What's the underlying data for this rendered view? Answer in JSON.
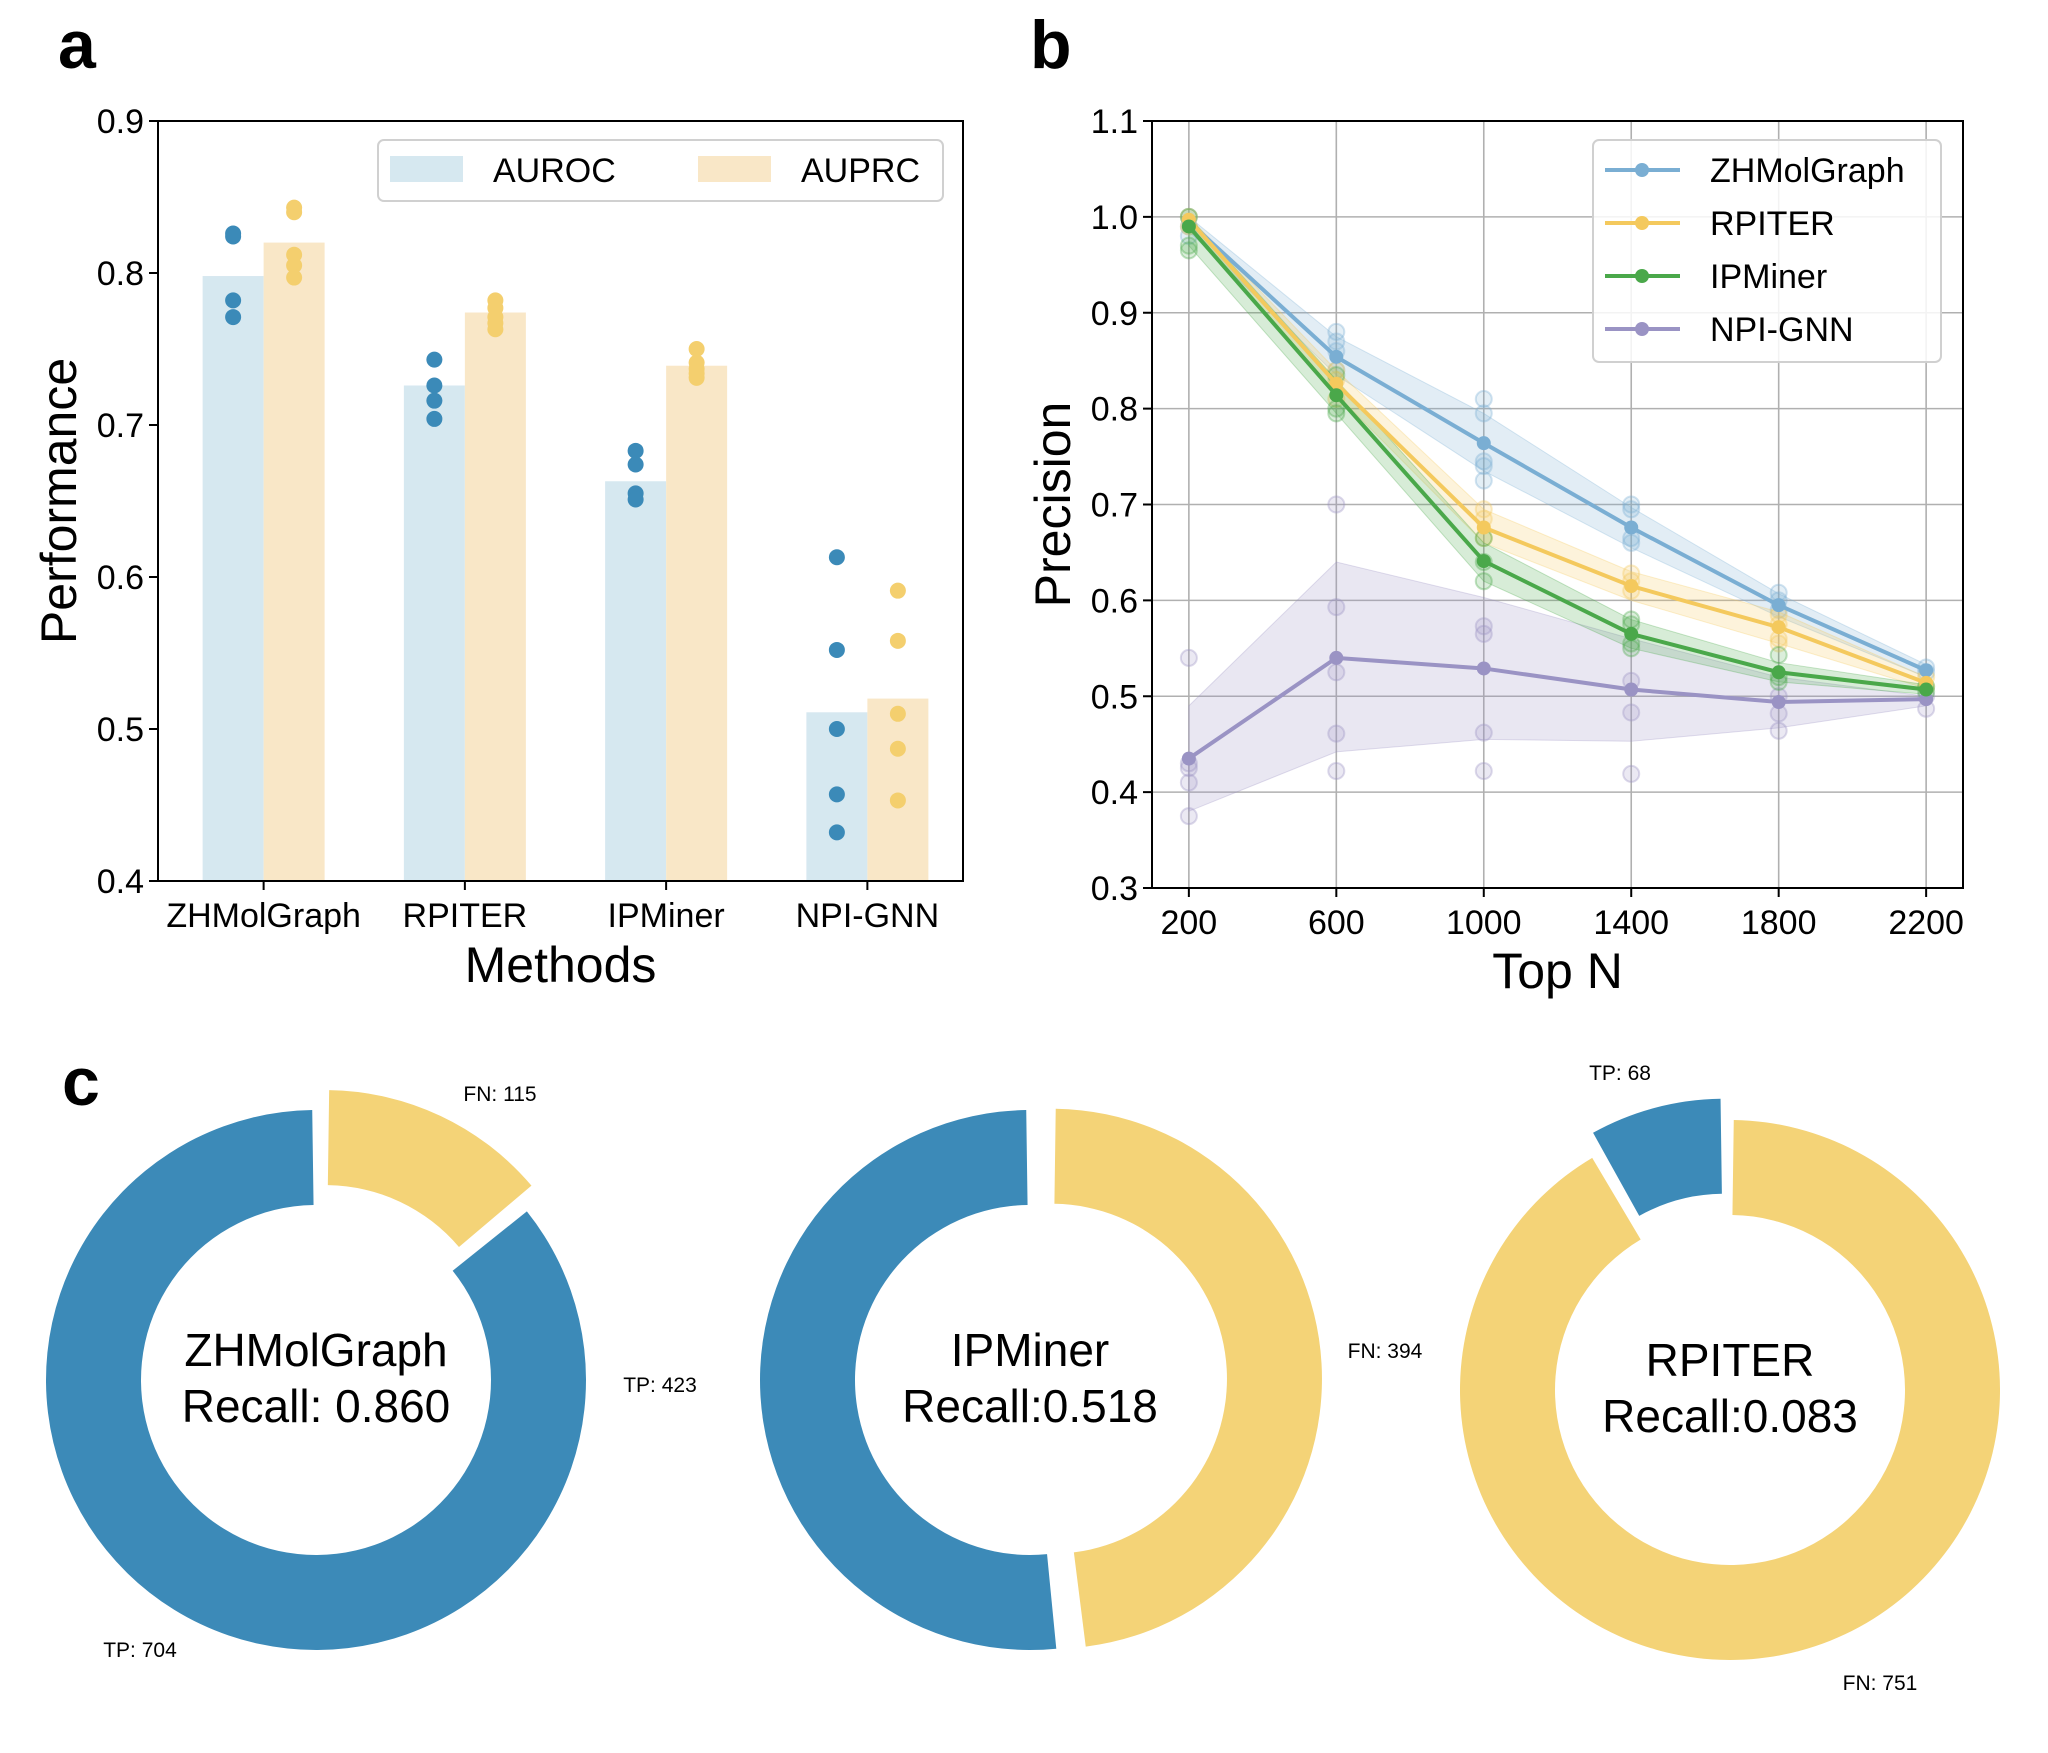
{
  "panels": {
    "a": "a",
    "b": "b",
    "c": "c"
  },
  "chart_data": [
    {
      "id": "a",
      "type": "bar",
      "title": "",
      "xlabel": "Methods",
      "ylabel": "Performance",
      "ylim": [
        0.4,
        0.9
      ],
      "yticks": [
        "0.4",
        "0.5",
        "0.6",
        "0.7",
        "0.8",
        "0.9"
      ],
      "categories": [
        "ZHMolGraph",
        "RPITER",
        "IPMiner",
        "NPI-GNN"
      ],
      "legend": {
        "placement": "top-right",
        "entries": [
          "AUROC",
          "AUPRC"
        ]
      },
      "series": [
        {
          "name": "AUROC",
          "bar_color": "#d6e8f0",
          "point_color": "#3b8ab8",
          "values": [
            0.798,
            0.726,
            0.663,
            0.511
          ],
          "points": [
            [
              0.826,
              0.824,
              0.782,
              0.771
            ],
            [
              0.743,
              0.726,
              0.716,
              0.704
            ],
            [
              0.683,
              0.674,
              0.655,
              0.651
            ],
            [
              0.613,
              0.552,
              0.5,
              0.457,
              0.432
            ]
          ]
        },
        {
          "name": "AUPRC",
          "bar_color": "#f9e7c7",
          "point_color": "#f4cf6e",
          "values": [
            0.82,
            0.774,
            0.739,
            0.52
          ],
          "points": [
            [
              0.843,
              0.84,
              0.812,
              0.805,
              0.797
            ],
            [
              0.782,
              0.777,
              0.771,
              0.767,
              0.763
            ],
            [
              0.75,
              0.741,
              0.737,
              0.734,
              0.731
            ],
            [
              0.591,
              0.558,
              0.51,
              0.487,
              0.453
            ]
          ]
        }
      ]
    },
    {
      "id": "b",
      "type": "line",
      "title": "",
      "xlabel": "Top N",
      "ylabel": "Precision",
      "x": [
        200,
        600,
        1000,
        1400,
        1800,
        2200
      ],
      "xticks": [
        "200",
        "600",
        "1000",
        "1400",
        "1800",
        "2200"
      ],
      "xlim": [
        100,
        2300
      ],
      "ylim": [
        0.3,
        1.1
      ],
      "yticks": [
        "0.3",
        "0.4",
        "0.5",
        "0.6",
        "0.7",
        "0.8",
        "0.9",
        "1.0",
        "1.1"
      ],
      "grid": true,
      "legend": {
        "placement": "top-right",
        "entries": [
          "ZHMolGraph",
          "RPITER",
          "IPMiner",
          "NPI-GNN"
        ]
      },
      "series": [
        {
          "name": "ZHMolGraph",
          "color": "#7aaed3",
          "values": [
            0.995,
            0.854,
            0.764,
            0.676,
            0.595,
            0.527
          ],
          "lower": [
            0.985,
            0.835,
            0.735,
            0.655,
            0.583,
            0.52
          ],
          "upper": [
            1.0,
            0.875,
            0.795,
            0.697,
            0.607,
            0.533
          ],
          "points": [
            [
              0.98,
              0.99,
              1.0
            ],
            [
              0.88,
              0.87,
              0.86,
              0.84
            ],
            [
              0.81,
              0.795,
              0.745,
              0.74,
              0.725
            ],
            [
              0.7,
              0.695,
              0.665,
              0.66
            ],
            [
              0.608,
              0.6,
              0.59
            ],
            [
              0.53,
              0.525
            ]
          ]
        },
        {
          "name": "RPITER",
          "color": "#f4c95d",
          "values": [
            0.997,
            0.826,
            0.676,
            0.615,
            0.572,
            0.514
          ],
          "lower": [
            0.99,
            0.815,
            0.66,
            0.6,
            0.555,
            0.508
          ],
          "upper": [
            1.0,
            0.84,
            0.695,
            0.63,
            0.588,
            0.52
          ],
          "points": [
            [
              1.0,
              0.99
            ],
            [
              0.84,
              0.83,
              0.81
            ],
            [
              0.695,
              0.685,
              0.665
            ],
            [
              0.628,
              0.62,
              0.61
            ],
            [
              0.585,
              0.575,
              0.56,
              0.555
            ],
            [
              0.52,
              0.51
            ]
          ]
        },
        {
          "name": "IPMiner",
          "color": "#4aa84a",
          "values": [
            0.99,
            0.814,
            0.641,
            0.565,
            0.525,
            0.507
          ],
          "lower": [
            0.97,
            0.795,
            0.62,
            0.55,
            0.515,
            0.502
          ],
          "upper": [
            1.0,
            0.83,
            0.66,
            0.58,
            0.535,
            0.512
          ],
          "points": [
            [
              1.0,
              0.965,
              0.97
            ],
            [
              0.835,
              0.8,
              0.795
            ],
            [
              0.665,
              0.64,
              0.62
            ],
            [
              0.58,
              0.575,
              0.555,
              0.55
            ],
            [
              0.543,
              0.52,
              0.515
            ],
            [
              0.51,
              0.505
            ]
          ]
        },
        {
          "name": "NPI-GNN",
          "color": "#9a93c4",
          "values": [
            0.435,
            0.54,
            0.529,
            0.507,
            0.494,
            0.497
          ],
          "lower": [
            0.38,
            0.442,
            0.455,
            0.453,
            0.467,
            0.49
          ],
          "upper": [
            0.49,
            0.64,
            0.603,
            0.56,
            0.52,
            0.5
          ],
          "points": [
            [
              0.54,
              0.43,
              0.425,
              0.41,
              0.375
            ],
            [
              0.7,
              0.593,
              0.525,
              0.461,
              0.422
            ],
            [
              0.573,
              0.565,
              0.462,
              0.422
            ],
            [
              0.516,
              0.483,
              0.419
            ],
            [
              0.5,
              0.482,
              0.464
            ],
            [
              0.5,
              0.487
            ]
          ]
        }
      ]
    },
    {
      "id": "c",
      "type": "pie",
      "colors": {
        "TP": "#3c8ab8",
        "FN": "#f4d377"
      },
      "donuts": [
        {
          "name": "ZHMolGraph",
          "center_line1": "ZHMolGraph",
          "center_line2": "Recall: 0.860",
          "slices": [
            {
              "label": "FN: 115",
              "key": "FN",
              "value": 115
            },
            {
              "label": "TP: 704",
              "key": "TP",
              "value": 704
            }
          ],
          "explode": "FN"
        },
        {
          "name": "IPMiner",
          "center_line1": "IPMiner",
          "center_line2": "Recall:0.518",
          "slices": [
            {
              "label": "FN: 394",
              "key": "FN",
              "value": 394
            },
            {
              "label": "TP: 423",
              "key": "TP",
              "value": 423
            }
          ],
          "explode": "FN"
        },
        {
          "name": "RPITER",
          "center_line1": "RPITER",
          "center_line2": "Recall:0.083",
          "slices": [
            {
              "label": "FN: 751",
              "key": "FN",
              "value": 751
            },
            {
              "label": "TP: 68",
              "key": "TP",
              "value": 68
            }
          ],
          "explode": "TP"
        }
      ]
    }
  ]
}
